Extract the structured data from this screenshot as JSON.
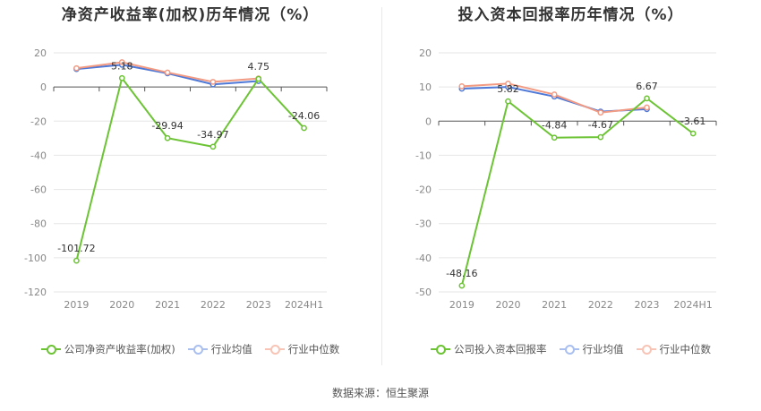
{
  "footer": {
    "source": "数据来源：恒生聚源"
  },
  "chart_data": [
    {
      "type": "line",
      "title": "净资产收益率(加权)历年情况（%）",
      "categories": [
        "2019",
        "2020",
        "2021",
        "2022",
        "2023",
        "2024H1"
      ],
      "ylim": [
        -120,
        20
      ],
      "yticks": [
        20,
        0,
        -20,
        -40,
        -60,
        -80,
        -100,
        -120
      ],
      "grid": true,
      "legend_position": "bottom",
      "series": [
        {
          "name": "公司净资产收益率(加权)",
          "color": "#6cc334",
          "values": [
            -101.72,
            5.18,
            -29.94,
            -34.97,
            4.75,
            -24.06
          ],
          "labels": [
            "-101.72",
            "5.18",
            "-29.94",
            "-34.97",
            "4.75",
            "-24.06"
          ]
        },
        {
          "name": "行业均值",
          "color": "#4e79d8",
          "values": [
            10.5,
            13.0,
            8.0,
            1.5,
            3.5,
            null
          ]
        },
        {
          "name": "行业中位数",
          "color": "#f29a82",
          "values": [
            11.0,
            14.5,
            8.5,
            3.0,
            5.0,
            null
          ]
        }
      ]
    },
    {
      "type": "line",
      "title": "投入资本回报率历年情况（%）",
      "categories": [
        "2019",
        "2020",
        "2021",
        "2022",
        "2023",
        "2024H1"
      ],
      "ylim": [
        -50,
        20
      ],
      "yticks": [
        20,
        10,
        0,
        -10,
        -20,
        -30,
        -40,
        -50
      ],
      "grid": true,
      "legend_position": "bottom",
      "series": [
        {
          "name": "公司投入资本回报率",
          "color": "#6cc334",
          "values": [
            -48.16,
            5.82,
            -4.84,
            -4.67,
            6.67,
            -3.61
          ],
          "labels": [
            "-48.16",
            "5.82",
            "-4.84",
            "-4.67",
            "6.67",
            "-3.61"
          ]
        },
        {
          "name": "行业均值",
          "color": "#4e79d8",
          "values": [
            9.5,
            10.0,
            7.2,
            2.8,
            3.5,
            null
          ]
        },
        {
          "name": "行业中位数",
          "color": "#f29a82",
          "values": [
            10.2,
            11.0,
            7.8,
            2.5,
            4.0,
            null
          ]
        }
      ]
    }
  ]
}
